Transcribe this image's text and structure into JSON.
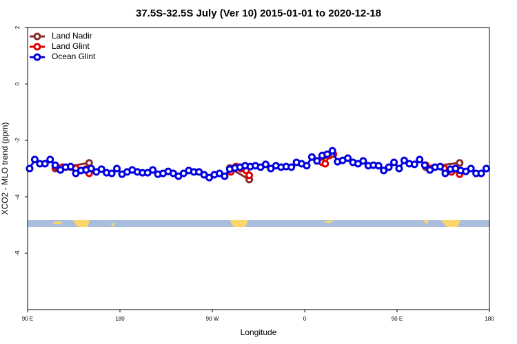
{
  "chart_data": {
    "type": "line",
    "title": "37.5S-32.5S July (Ver 10)   2015-01-01 to 2020-12-18",
    "x_label": "Longitude",
    "y_label": "XCO2 - MLO trend (ppm)",
    "xlim": [
      90,
      540
    ],
    "xticks": [
      {
        "value": 90,
        "label": "90 E"
      },
      {
        "value": 180,
        "label": "180"
      },
      {
        "value": 270,
        "label": "90 W"
      },
      {
        "value": 360,
        "label": "0"
      },
      {
        "value": 450,
        "label": "90 E"
      },
      {
        "value": 540,
        "label": "180"
      }
    ],
    "ylim": [
      -8,
      2
    ],
    "yticks": [
      -6,
      -4,
      -2,
      0,
      2
    ],
    "legend": "upper left",
    "series": [
      {
        "name": "Land Nadir",
        "color": "#8b2a2a",
        "x": [
          117,
          150,
          220,
          287,
          306,
          340,
          379,
          420,
          478,
          511
        ],
        "values": [
          -3.0,
          -2.8,
          null,
          -2.98,
          -3.39,
          null,
          -2.54,
          null,
          -2.95,
          -2.8
        ]
      },
      {
        "name": "Land Glint",
        "color": "#e00000",
        "x": [
          117,
          124,
          132,
          137,
          142,
          147,
          150,
          220,
          288,
          293,
          298,
          303,
          306,
          340,
          377,
          380,
          384,
          388,
          430,
          478,
          483,
          496,
          503,
          506,
          511
        ],
        "values": [
          -2.93,
          -2.95,
          -2.95,
          -3.0,
          -3.07,
          -3.02,
          -3.17,
          null,
          -3.12,
          -2.93,
          -3.0,
          -3.07,
          -3.24,
          null,
          -2.78,
          -2.83,
          -2.54,
          -2.49,
          null,
          -2.88,
          -3.0,
          -3.0,
          -3.12,
          -3.02,
          -3.2
        ]
      },
      {
        "name": "Ocean Glint",
        "color": "#0000e0",
        "x": [
          92,
          97,
          102,
          107,
          112,
          117,
          122,
          127,
          132,
          137,
          142,
          147,
          152,
          157,
          162,
          167,
          172,
          177,
          182,
          187,
          192,
          197,
          202,
          207,
          212,
          217,
          222,
          227,
          232,
          237,
          242,
          247,
          252,
          257,
          262,
          267,
          272,
          277,
          282,
          287,
          292,
          297,
          302,
          307,
          312,
          317,
          322,
          327,
          332,
          337,
          342,
          347,
          352,
          357,
          362,
          367,
          372,
          377,
          382,
          387,
          392,
          397,
          402,
          407,
          412,
          417,
          422,
          427,
          432,
          437,
          442,
          447,
          452,
          457,
          462,
          467,
          472,
          477,
          482,
          487,
          492,
          497,
          502,
          507,
          512,
          517,
          522,
          527,
          532,
          537
        ],
        "values": [
          -3.0,
          -2.68,
          -2.83,
          -2.83,
          -2.68,
          -2.88,
          -3.05,
          -2.95,
          -2.93,
          -3.17,
          -3.07,
          -3.05,
          -3.0,
          -3.12,
          -3.02,
          -3.15,
          -3.17,
          -3.0,
          -3.2,
          -3.12,
          -3.05,
          -3.12,
          -3.15,
          -3.15,
          -3.05,
          -3.2,
          -3.17,
          -3.1,
          -3.17,
          -3.27,
          -3.17,
          -3.07,
          -3.12,
          -3.12,
          -3.22,
          -3.32,
          -3.22,
          -3.17,
          -3.27,
          -3.02,
          -2.98,
          -2.95,
          -2.9,
          -2.93,
          -2.9,
          -2.95,
          -2.85,
          -3.0,
          -2.9,
          -2.95,
          -2.93,
          -2.95,
          -2.78,
          -2.83,
          -2.9,
          -2.59,
          -2.73,
          -2.54,
          -2.49,
          -2.37,
          -2.76,
          -2.71,
          -2.63,
          -2.78,
          -2.83,
          -2.73,
          -2.9,
          -2.88,
          -2.9,
          -3.07,
          -2.95,
          -2.78,
          -3.0,
          -2.71,
          -2.83,
          -2.85,
          -2.68,
          -2.88,
          -3.05,
          -2.95,
          -2.93,
          -3.17,
          -3.02,
          -3.0,
          -3.07,
          -3.1,
          -3.0,
          -3.17,
          -3.17,
          -3.0
        ]
      }
    ]
  }
}
